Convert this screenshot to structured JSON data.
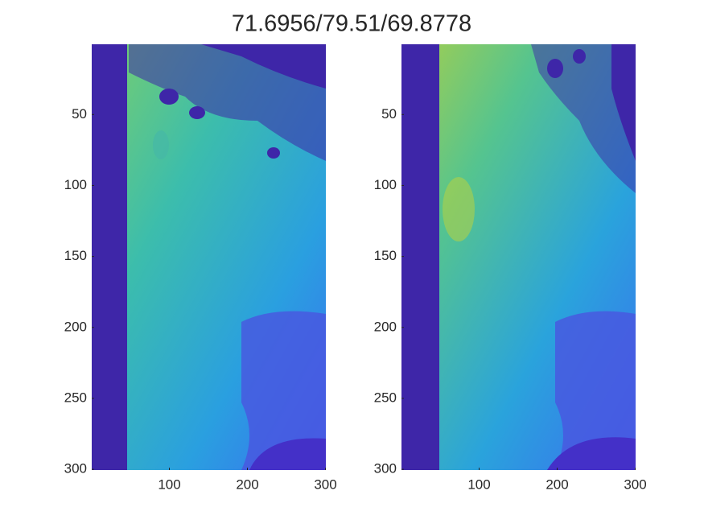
{
  "title": "71.6956/79.51/69.8778",
  "chart_data": [
    {
      "type": "image",
      "xlim": [
        0.5,
        300.5
      ],
      "ylim": [
        0.5,
        300.5
      ],
      "y_reversed": true,
      "xticks": [
        100,
        200,
        300
      ],
      "yticks": [
        50,
        100,
        150,
        200,
        250,
        300
      ]
    },
    {
      "type": "image",
      "xlim": [
        0.5,
        300.5
      ],
      "ylim": [
        0.5,
        300.5
      ],
      "y_reversed": true,
      "xticks": [
        100,
        200,
        300
      ],
      "yticks": [
        50,
        100,
        150,
        200,
        250,
        300
      ]
    }
  ]
}
